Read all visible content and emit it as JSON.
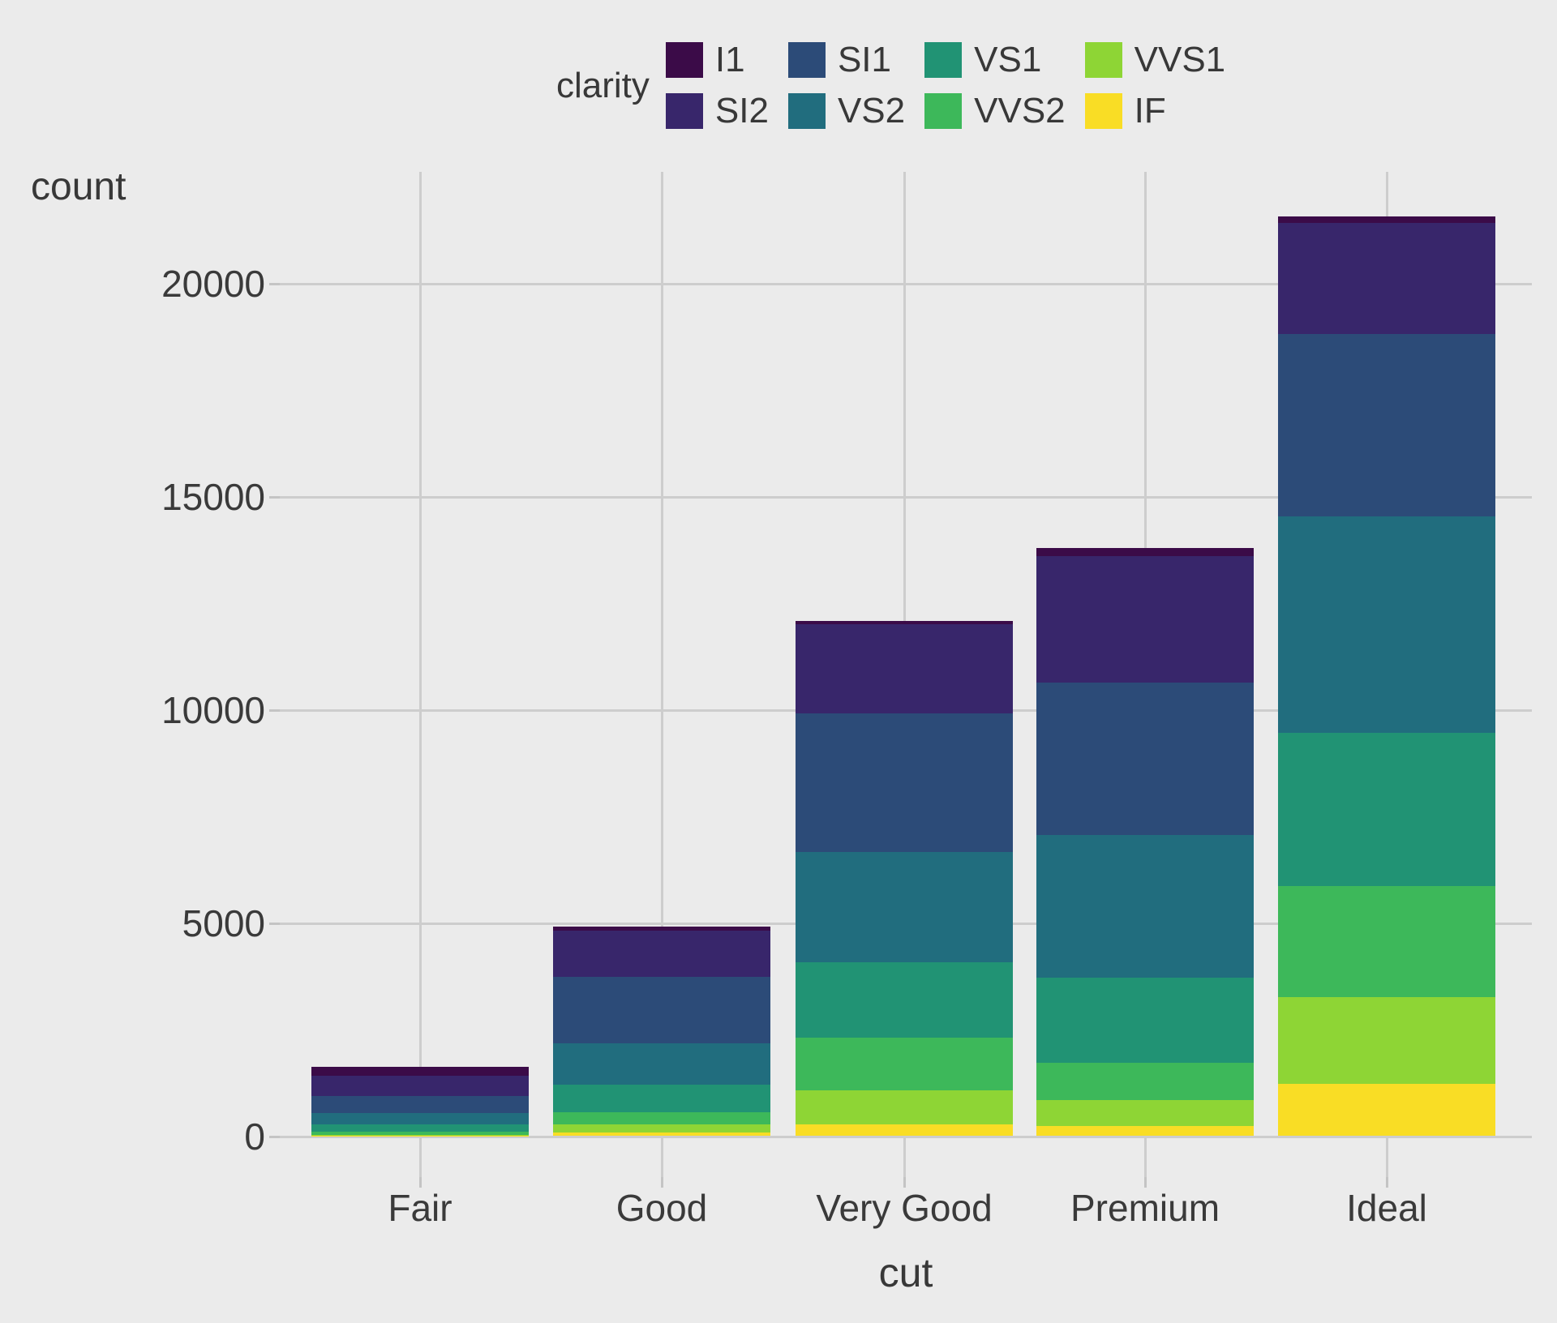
{
  "axes": {
    "y_title": "count",
    "x_title": "cut"
  },
  "legend": {
    "title": "clarity"
  },
  "colors": {
    "background": "#EBEBEB",
    "gridline": "#CDCDCD",
    "tick_mark": "#C4C4C4",
    "text": "#3A3A3A"
  },
  "chart_data": {
    "type": "bar",
    "stacked": true,
    "orientation": "vertical",
    "title": "",
    "xlabel": "cut",
    "ylabel": "count",
    "categories": [
      "Fair",
      "Good",
      "Very Good",
      "Premium",
      "Ideal"
    ],
    "series": [
      {
        "name": "I1",
        "color": "#3B0B48",
        "values": [
          210,
          96,
          84,
          205,
          146
        ]
      },
      {
        "name": "SI2",
        "color": "#38266B",
        "values": [
          466,
          1081,
          2100,
          2949,
          2598
        ]
      },
      {
        "name": "SI1",
        "color": "#2C4B78",
        "values": [
          408,
          1560,
          3240,
          3575,
          4282
        ]
      },
      {
        "name": "VS2",
        "color": "#216D7E",
        "values": [
          261,
          978,
          2591,
          3357,
          5071
        ]
      },
      {
        "name": "VS1",
        "color": "#219374",
        "values": [
          170,
          648,
          1775,
          1989,
          3589
        ]
      },
      {
        "name": "VVS2",
        "color": "#3DB85A",
        "values": [
          69,
          286,
          1235,
          870,
          2606
        ]
      },
      {
        "name": "VVS1",
        "color": "#8ED535",
        "values": [
          17,
          186,
          789,
          616,
          2047
        ]
      },
      {
        "name": "IF",
        "color": "#F9DD25",
        "values": [
          9,
          71,
          268,
          230,
          1212
        ]
      }
    ],
    "totals": [
      1610,
      4906,
      12082,
      13791,
      21551
    ],
    "y_ticks": [
      0,
      5000,
      10000,
      15000,
      20000
    ],
    "ylim": [
      0,
      22628
    ],
    "stack_order_top_to_bottom": [
      "I1",
      "SI2",
      "SI1",
      "VS2",
      "VS1",
      "VVS2",
      "VVS1",
      "IF"
    ],
    "legend_title": "clarity",
    "legend_position": "top",
    "grid": "major-only"
  }
}
